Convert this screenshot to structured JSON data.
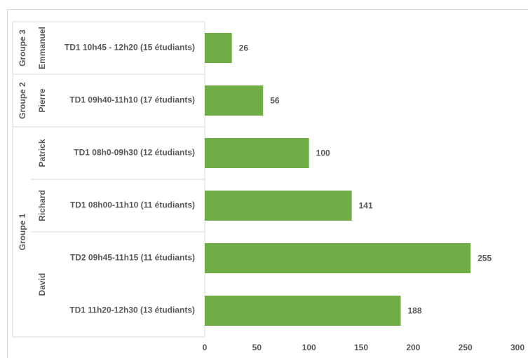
{
  "chart_data": {
    "type": "bar",
    "orientation": "horizontal",
    "title": "",
    "xlabel": "",
    "ylabel": "",
    "xlim": [
      0,
      300
    ],
    "x_ticks": [
      0,
      50,
      100,
      150,
      200,
      250,
      300
    ],
    "grid": false,
    "bar_color": "#70AD47",
    "categories": [
      "TD1 10h45 - 12h20 (15 étudiants)",
      "TD1 09h40-11h10 (17 étudiants)",
      "TD1 08h0-09h30 (12 étudiants)",
      "TD1 08h00-11h10 (11 étudiants)",
      "TD2 09h45-11h15 (11 étudiants)",
      "TD1 11h20-12h30 (13 étudiants)"
    ],
    "values": [
      26,
      56,
      100,
      141,
      255,
      188
    ],
    "teachers": [
      {
        "name": "Emmanuel",
        "rows": [
          0
        ]
      },
      {
        "name": "Pierre",
        "rows": [
          1
        ]
      },
      {
        "name": "Patrick",
        "rows": [
          2
        ]
      },
      {
        "name": "Richard",
        "rows": [
          3
        ]
      },
      {
        "name": "David",
        "rows": [
          4,
          5
        ]
      }
    ],
    "groups": [
      {
        "name": "Groupe 3",
        "rows": [
          0
        ]
      },
      {
        "name": "Groupe 2",
        "rows": [
          1
        ]
      },
      {
        "name": "Groupe 1",
        "rows": [
          2,
          3,
          4,
          5
        ]
      }
    ]
  }
}
